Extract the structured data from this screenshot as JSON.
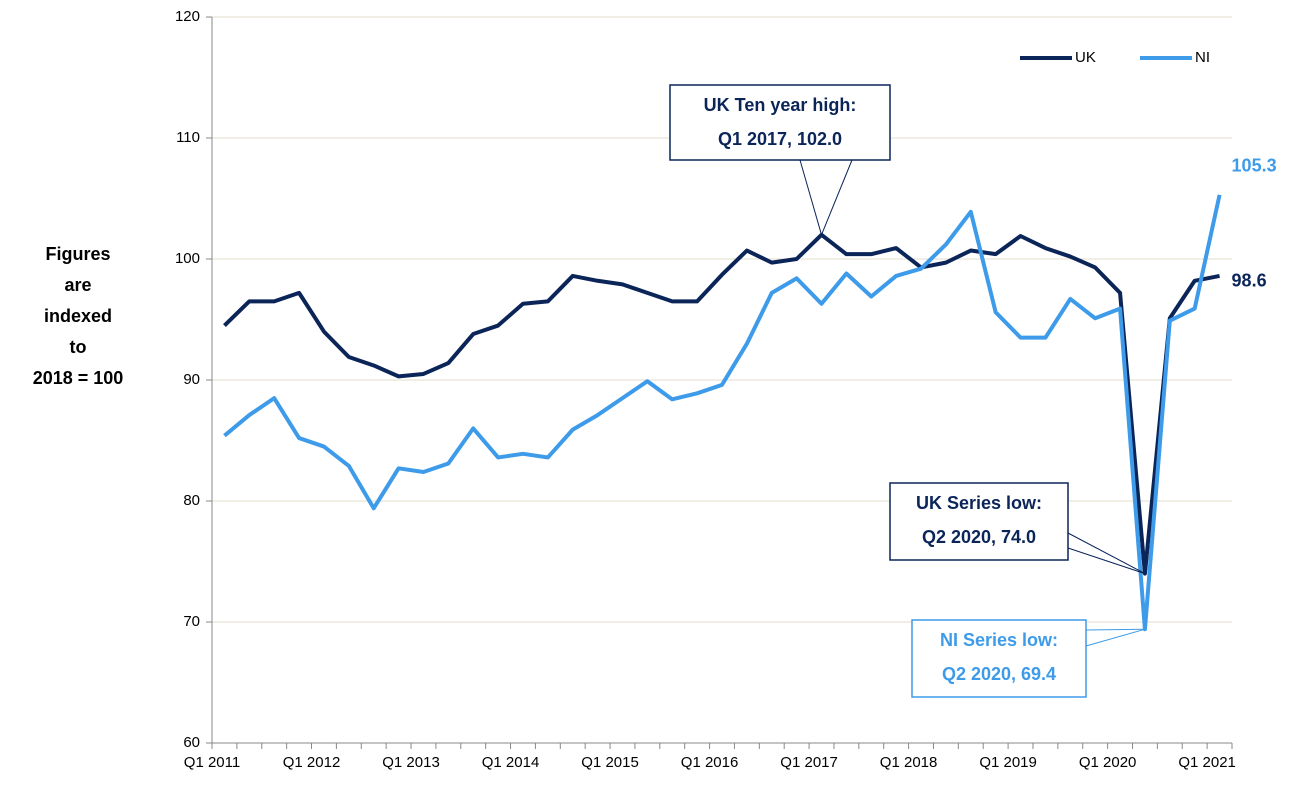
{
  "chart_data": {
    "type": "line",
    "y_label_lines": [
      "Figures",
      "are",
      "indexed",
      "to",
      "2018 = 100"
    ],
    "categories": [
      "Q1 2011",
      null,
      null,
      null,
      "Q1 2012",
      null,
      null,
      null,
      "Q1 2013",
      null,
      null,
      null,
      "Q1 2014",
      null,
      null,
      null,
      "Q1 2015",
      null,
      null,
      null,
      "Q1 2016",
      null,
      null,
      null,
      "Q1 2017",
      null,
      null,
      null,
      "Q1 2018",
      null,
      null,
      null,
      "Q1 2019",
      null,
      null,
      null,
      "Q1 2020",
      null,
      null,
      null,
      "Q1 2021"
    ],
    "series": [
      {
        "name": "UK",
        "color": "#0b2559",
        "values": [
          94.5,
          96.5,
          96.5,
          97.2,
          94.0,
          91.9,
          91.2,
          90.3,
          90.5,
          91.4,
          93.8,
          94.5,
          96.3,
          96.5,
          98.6,
          98.2,
          97.9,
          97.2,
          96.5,
          96.5,
          98.7,
          100.7,
          99.7,
          100.0,
          102.0,
          100.4,
          100.4,
          100.9,
          99.3,
          99.7,
          100.7,
          100.4,
          101.9,
          100.9,
          100.2,
          99.3,
          97.2,
          74.0,
          95.1,
          98.2,
          98.6
        ]
      },
      {
        "name": "NI",
        "color": "#3d9be9",
        "values": [
          85.4,
          87.1,
          88.5,
          85.2,
          84.5,
          82.9,
          79.4,
          82.7,
          82.4,
          83.1,
          86.0,
          83.6,
          83.9,
          83.6,
          85.9,
          87.1,
          88.5,
          89.9,
          88.4,
          88.9,
          89.6,
          93.0,
          97.2,
          98.4,
          96.3,
          98.8,
          96.9,
          98.6,
          99.2,
          101.2,
          103.9,
          95.6,
          93.5,
          93.5,
          96.7,
          95.1,
          95.9,
          69.4,
          94.9,
          95.9,
          105.3
        ]
      }
    ],
    "annotations": [
      {
        "lines": [
          "UK Ten year high:",
          "Q1 2017, 102.0"
        ]
      },
      {
        "lines": [
          "UK Series low:",
          "Q2 2020, 74.0"
        ]
      },
      {
        "lines": [
          "NI Series low:",
          "Q2 2020, 69.4"
        ]
      }
    ],
    "ylim": [
      60,
      120
    ],
    "yticks": [
      60,
      70,
      80,
      90,
      100,
      110,
      120
    ],
    "grid": true,
    "legend": "top-right"
  }
}
